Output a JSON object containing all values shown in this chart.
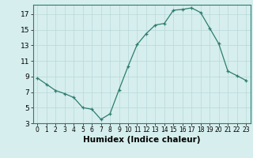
{
  "x": [
    0,
    1,
    2,
    3,
    4,
    5,
    6,
    7,
    8,
    9,
    10,
    11,
    12,
    13,
    14,
    15,
    16,
    17,
    18,
    19,
    20,
    21,
    22,
    23
  ],
  "y": [
    8.8,
    8.0,
    7.2,
    6.8,
    6.3,
    5.0,
    4.8,
    3.5,
    4.2,
    7.3,
    10.3,
    13.1,
    14.5,
    15.6,
    15.8,
    17.5,
    17.6,
    17.8,
    17.2,
    15.2,
    13.2,
    9.7,
    9.1,
    8.5
  ],
  "xlim": [
    -0.5,
    23.5
  ],
  "ylim": [
    3,
    18.2
  ],
  "yticks": [
    3,
    5,
    7,
    9,
    11,
    13,
    15,
    17
  ],
  "xticks": [
    0,
    1,
    2,
    3,
    4,
    5,
    6,
    7,
    8,
    9,
    10,
    11,
    12,
    13,
    14,
    15,
    16,
    17,
    18,
    19,
    20,
    21,
    22,
    23
  ],
  "xlabel": "Humidex (Indice chaleur)",
  "line_color": "#2e7d6e",
  "marker": "+",
  "bg_color": "#d6eeee",
  "grid_color": "#b8d8d8",
  "tick_fontsize": 6.5,
  "label_fontsize": 7.5
}
